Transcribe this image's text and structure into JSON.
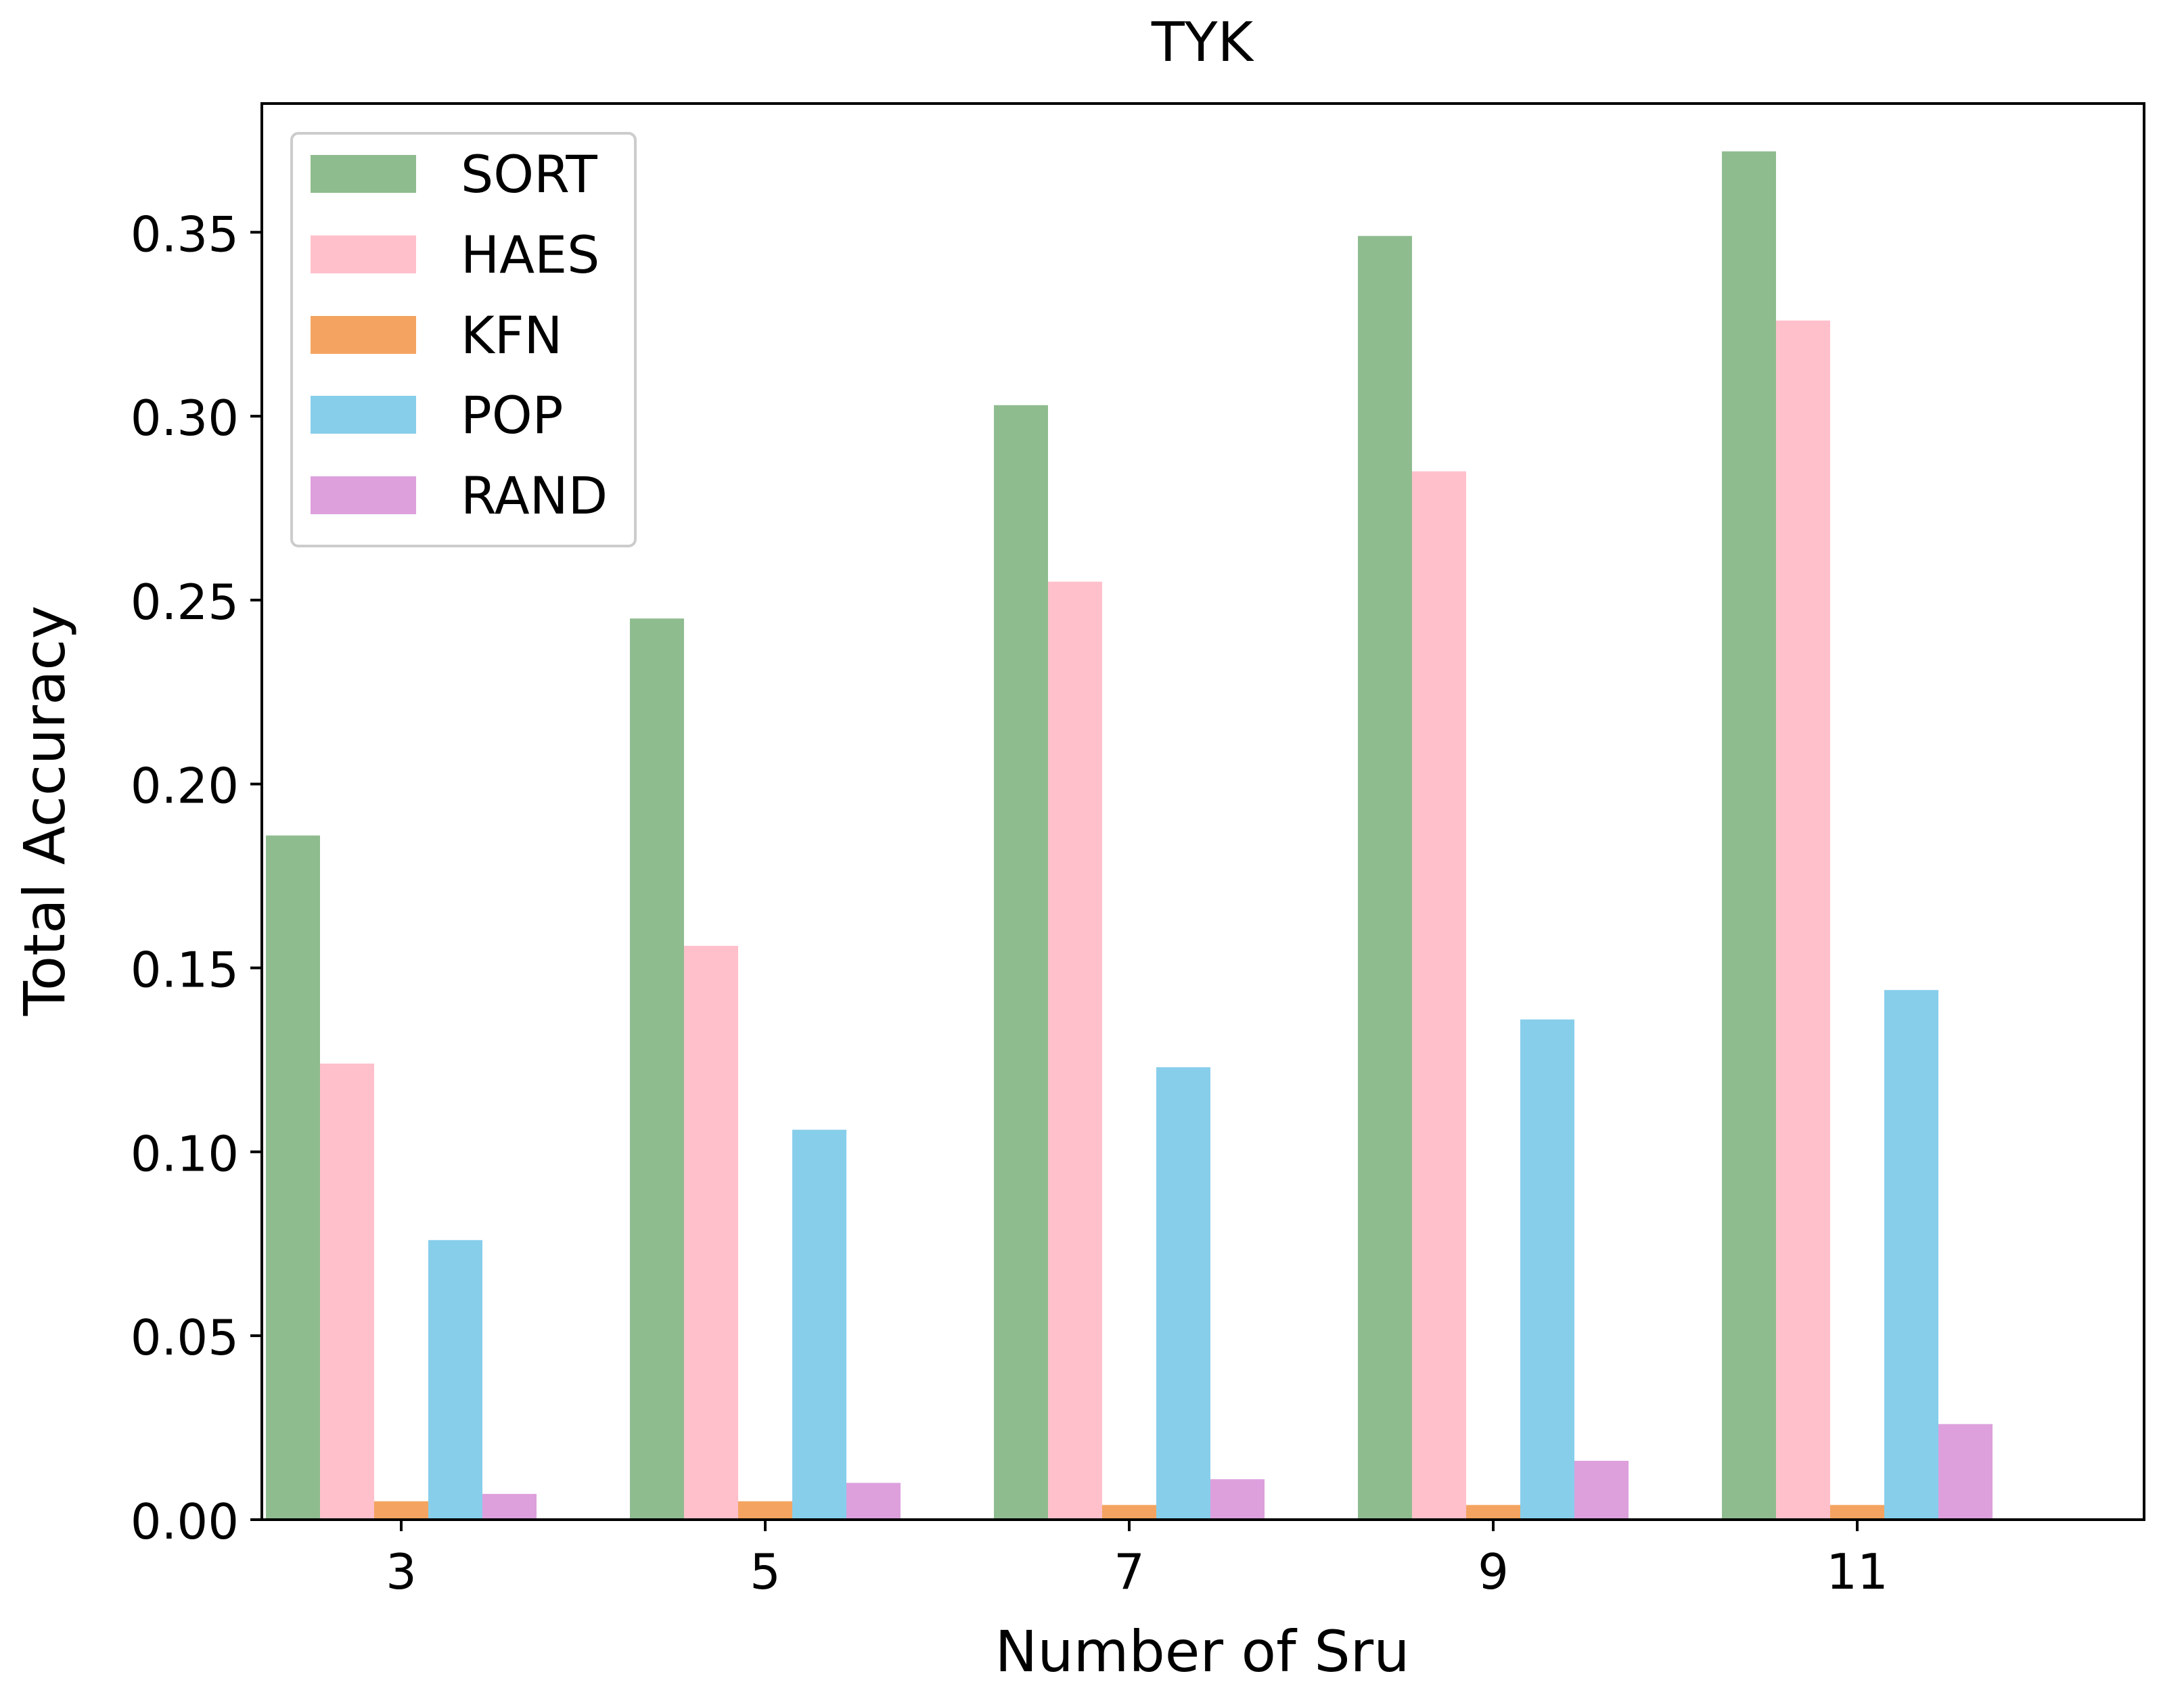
{
  "chart_data": {
    "type": "bar",
    "title": "TYK",
    "xlabel": "Number of Sru",
    "ylabel": "Total Accuracy",
    "categories": [
      "3",
      "5",
      "7",
      "9",
      "11"
    ],
    "ylim": [
      0,
      0.385
    ],
    "yticks": [
      0.0,
      0.05,
      0.1,
      0.15,
      0.2,
      0.25,
      0.3,
      0.35
    ],
    "ytick_labels": [
      "0.00",
      "0.05",
      "0.10",
      "0.15",
      "0.20",
      "0.25",
      "0.30",
      "0.35"
    ],
    "grid": false,
    "legend_position": "top-left",
    "series": [
      {
        "name": "SORT",
        "color": "#8fbc8f",
        "values": [
          0.186,
          0.245,
          0.303,
          0.349,
          0.372
        ]
      },
      {
        "name": "HAES",
        "color": "#ffc0cb",
        "values": [
          0.124,
          0.156,
          0.255,
          0.285,
          0.326
        ]
      },
      {
        "name": "KFN",
        "color": "#f4a460",
        "values": [
          0.005,
          0.005,
          0.004,
          0.004,
          0.004
        ]
      },
      {
        "name": "POP",
        "color": "#87ceeb",
        "values": [
          0.076,
          0.106,
          0.123,
          0.136,
          0.144
        ]
      },
      {
        "name": "RAND",
        "color": "#dda0dd",
        "values": [
          0.007,
          0.01,
          0.011,
          0.016,
          0.026
        ]
      }
    ]
  }
}
